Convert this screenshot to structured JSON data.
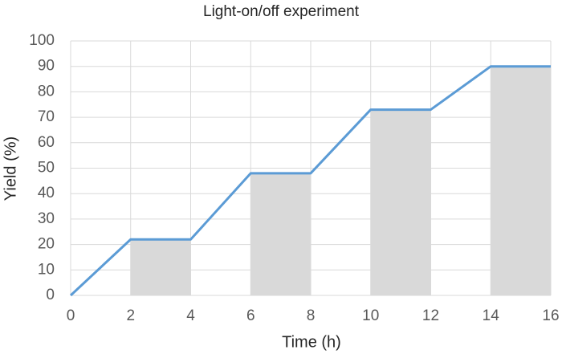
{
  "chart_data": {
    "type": "line",
    "title": "Light-on/off experiment",
    "x_label": "Time (h)",
    "y_label": "Yield (%)",
    "x": [
      0,
      2,
      4,
      6,
      8,
      10,
      12,
      14,
      16
    ],
    "series": [
      {
        "name": "Yield",
        "color": "#5b9bd5",
        "values": [
          0,
          22,
          22,
          48,
          48,
          73,
          73,
          90,
          90
        ]
      }
    ],
    "shade_color": "#d9d9d9",
    "xlim": [
      0,
      16
    ],
    "xticks": [
      0,
      2,
      4,
      6,
      8,
      10,
      12,
      14,
      16
    ],
    "ylim": [
      0,
      100
    ],
    "yticks": [
      0,
      10,
      20,
      30,
      40,
      50,
      60,
      70,
      80,
      90,
      100
    ],
    "grid": true
  }
}
